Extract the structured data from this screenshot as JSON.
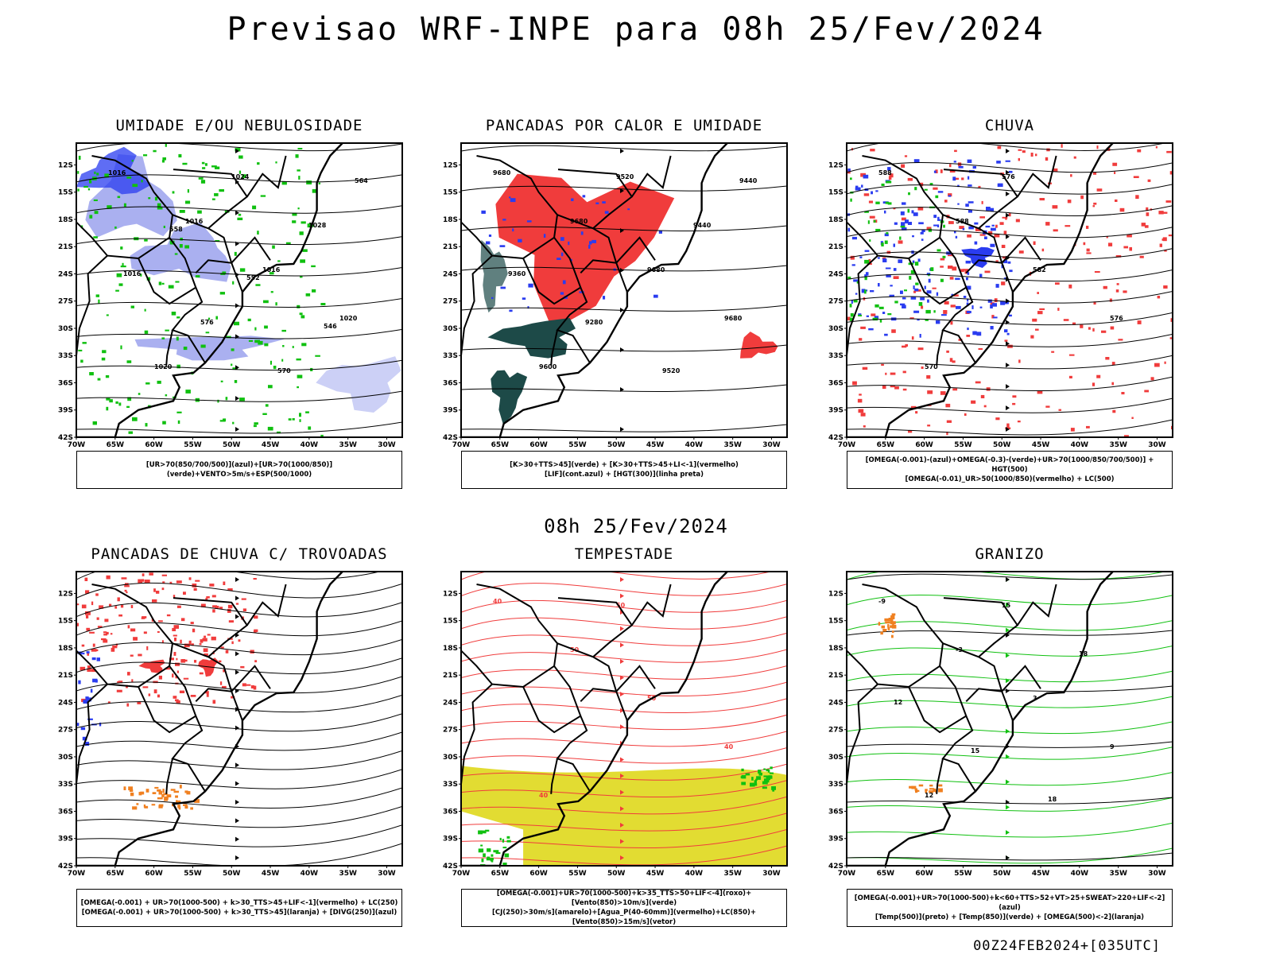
{
  "main_title": "Previsao WRF-INPE  para 08h 25/Fev/2024",
  "mid_title": "08h 25/Fev/2024",
  "footer_stamp": "00Z24FEB2024+[035UTC]",
  "lat_labels": [
    "12S",
    "15S",
    "18S",
    "21S",
    "24S",
    "27S",
    "30S",
    "33S",
    "36S",
    "39S",
    "42S"
  ],
  "lon_labels": [
    "70W",
    "65W",
    "60W",
    "55W",
    "50W",
    "45W",
    "40W",
    "35W",
    "30W"
  ],
  "panels": [
    {
      "id": "umidade",
      "title": "UMIDADE E/OU NEBULOSIDADE",
      "legend": [
        "[UR>70(850/700/500)](azul)+[UR>70(1000/850)](verde)+VENTO>5m/s+ESP(500/1000)"
      ],
      "contour_labels": [
        "1016",
        "1016",
        "1016",
        "1020",
        "1020",
        "1024",
        "1028",
        "1016",
        "576",
        "570",
        "564",
        "558",
        "552",
        "546"
      ]
    },
    {
      "id": "pancadas-calor",
      "title": "PANCADAS POR CALOR E UMIDADE",
      "legend": [
        "[K>30+TTS>45](verde) + [K>30+TTS>45+LI<-1](vermelho)",
        "[LIF](cont.azul) + [HGT(300)](linha preta)"
      ],
      "contour_labels": [
        "9680",
        "9680",
        "9680",
        "9680",
        "9600",
        "9520",
        "9440",
        "9360",
        "9280",
        "9520",
        "9440"
      ]
    },
    {
      "id": "chuva",
      "title": "CHUVA",
      "legend": [
        "[OMEGA(-0.001)-(azul)+OMEGA(-0.3)-(verde)+UR>70(1000/850/700/500)] + HGT(500)",
        "[OMEGA(-0.01)_UR>50(1000/850)(vermelho) + LC(500)"
      ],
      "contour_labels": [
        "588",
        "588",
        "582",
        "576",
        "570",
        "576"
      ]
    },
    {
      "id": "trovoadas",
      "title": "PANCADAS DE CHUVA C/ TROVOADAS",
      "legend": [
        "[OMEGA(-0.001) + UR>70(1000-500) + k>30_TTS>45+LIF<-1](vermelho) + LC(250)",
        "[OMEGA(-0.001) + UR>70(1000-500) + k>30_TTS>45](laranja) + [DIVG(250)](azul)"
      ],
      "contour_labels": []
    },
    {
      "id": "tempestade",
      "title": "TEMPESTADE",
      "legend": [
        "[OMEGA(-0.001)+UR>70(1000-500)+k>35_TTS>50+LIF<-4](roxo)+[Vento(850)>10m/s](verde)",
        "[CJ(250)>30m/s](amarelo)+[Agua_P(40-60mm)](vermelho)+LC(850)+[Vento(850)>15m/s](vetor)"
      ],
      "contour_labels": [
        "40",
        "50",
        "50",
        "40",
        "40",
        "50"
      ]
    },
    {
      "id": "granizo",
      "title": "GRANIZO",
      "legend": [
        "[OMEGA(-0.001)+UR>70(1000-500)+k<60+TTS>52+VT>25+SWEAT>220+LIF<-2](azul)",
        "[Temp(500)](preto) + [Temp(850)](verde) + [OMEGA(500)<-2](laranja)"
      ],
      "contour_labels": [
        "-9",
        "-3",
        "3",
        "9",
        "12",
        "15",
        "18",
        "12",
        "15",
        "18"
      ]
    }
  ],
  "colors": {
    "light_blue": "#aab0f0",
    "blue": "#2a3cf0",
    "green": "#10c010",
    "red": "#f03c3c",
    "dark_teal": "#1d4a48",
    "yellow": "#e2dc32",
    "orange": "#f08020",
    "black": "#000000"
  }
}
